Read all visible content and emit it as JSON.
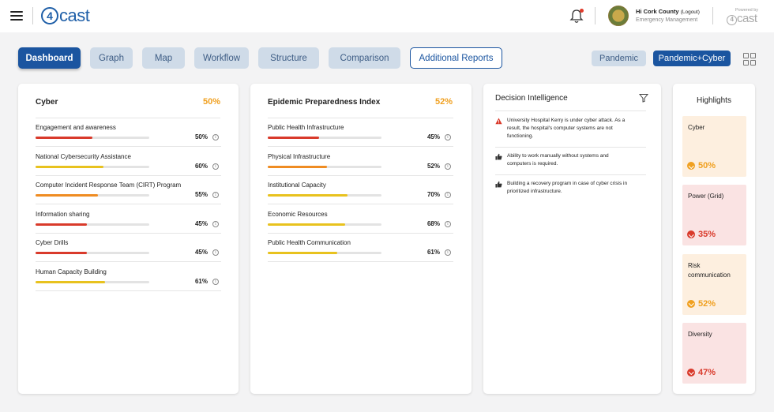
{
  "header": {
    "logo_text": "cast",
    "logo_mark": "4",
    "user_greeting": "Hi Cork County",
    "logout_label": "(Logout)",
    "user_role": "Emergency Management",
    "powered_by": "Powered by",
    "powered_logo_mark": "4",
    "powered_logo_text": "cast"
  },
  "nav": {
    "tabs": [
      "Dashboard",
      "Graph",
      "Map",
      "Workflow",
      "Structure",
      "Comparison",
      "Additional Reports"
    ],
    "active_tab": "Dashboard",
    "scenarios": [
      "Pandemic",
      "Pandemic+Cyber"
    ],
    "active_scenario": "Pandemic+Cyber"
  },
  "cyber": {
    "title": "Cyber",
    "score": "50%",
    "items": [
      {
        "label": "Engagement and awareness",
        "pct": "50%",
        "value": 50,
        "color": "#d93a2b"
      },
      {
        "label": "National Cybersecurity Assistance",
        "pct": "60%",
        "value": 60,
        "color": "#e8c21e"
      },
      {
        "label": "Computer Incident Response Team (CIRT) Program",
        "pct": "55%",
        "value": 55,
        "color": "#ef8c22"
      },
      {
        "label": "Information sharing",
        "pct": "45%",
        "value": 45,
        "color": "#d93a2b"
      },
      {
        "label": "Cyber Drills",
        "pct": "45%",
        "value": 45,
        "color": "#d93a2b"
      },
      {
        "label": "Human Capacity Building",
        "pct": "61%",
        "value": 61,
        "color": "#e8c21e"
      }
    ]
  },
  "epidemic": {
    "title": "Epidemic Preparedness Index",
    "score": "52%",
    "items": [
      {
        "label": "Public Health Infrastructure",
        "pct": "45%",
        "value": 45,
        "color": "#d93a2b"
      },
      {
        "label": "Physical Infrastructure",
        "pct": "52%",
        "value": 52,
        "color": "#ef8c22"
      },
      {
        "label": "Institutional Capacity",
        "pct": "70%",
        "value": 70,
        "color": "#e8c21e"
      },
      {
        "label": "Economic Resources",
        "pct": "68%",
        "value": 68,
        "color": "#e8c21e"
      },
      {
        "label": "Public Health Communication",
        "pct": "61%",
        "value": 61,
        "color": "#e8c21e"
      }
    ]
  },
  "decision": {
    "title": "Decision Intelligence",
    "items": [
      {
        "icon": "warning-icon",
        "text": "University Hospital Kerry is under cyber attack. As a result, the hospital's computer systems are not functioning."
      },
      {
        "icon": "thumbs-up-icon",
        "text": "Ability to work manually without systems and computers is required."
      },
      {
        "icon": "thumbs-up-icon",
        "text": "Building a recovery program in case of cyber crisis in prioritized infrastructure."
      }
    ]
  },
  "highlights": {
    "title": "Highlights",
    "items": [
      {
        "label": "Cyber",
        "value": "50%",
        "tone": "orange",
        "color": "#f0a020"
      },
      {
        "label": "Power (Grid)",
        "value": "35%",
        "tone": "pink",
        "color": "#d93a2b"
      },
      {
        "label": "Risk communication",
        "value": "52%",
        "tone": "orange",
        "color": "#f0a020"
      },
      {
        "label": "Diversity",
        "value": "47%",
        "tone": "pink",
        "color": "#d93a2b"
      }
    ]
  }
}
